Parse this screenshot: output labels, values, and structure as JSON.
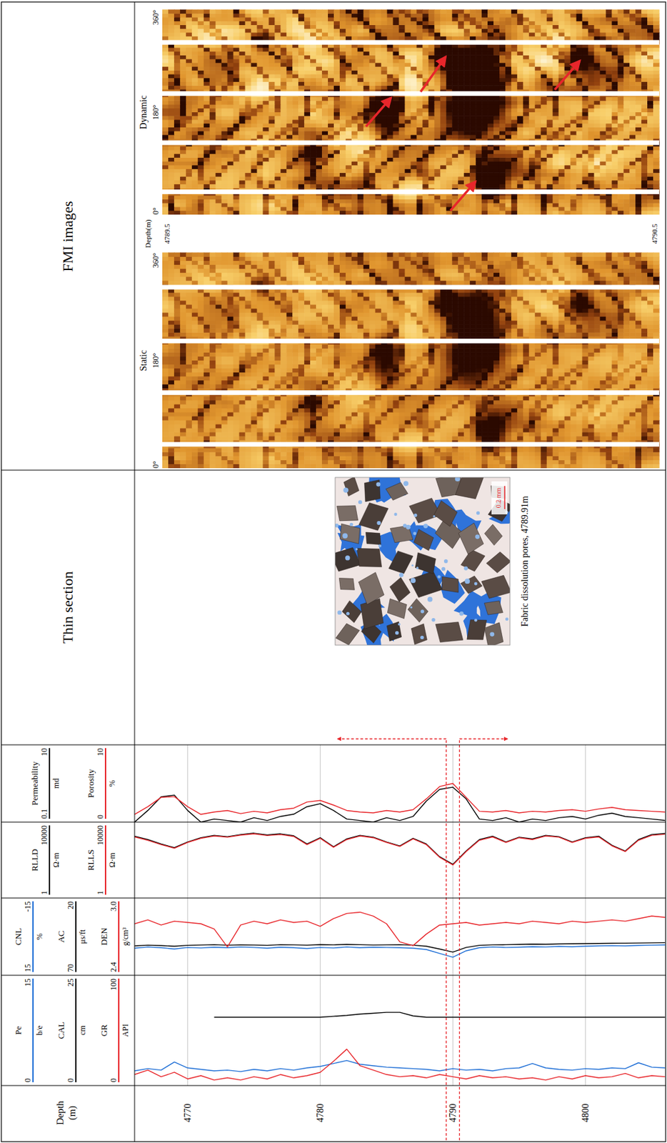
{
  "chart_data": {
    "type": "well_log",
    "depth": {
      "title": "Depth (m)",
      "ylim": [
        4766,
        4806
      ],
      "yticks": [
        4770,
        4780,
        4790,
        4800
      ],
      "grid": true,
      "values": [
        4766,
        4767,
        4768,
        4769,
        4770,
        4771,
        4772,
        4773,
        4774,
        4775,
        4776,
        4777,
        4778,
        4779,
        4780,
        4781,
        4782,
        4783,
        4784,
        4785,
        4786,
        4787,
        4788,
        4789,
        4790,
        4791,
        4792,
        4793,
        4794,
        4795,
        4796,
        4797,
        4798,
        4799,
        4800,
        4801,
        4802,
        4803,
        4804,
        4805,
        4806
      ]
    },
    "tracks": [
      {
        "series": [
          {
            "name": "Pe",
            "unit": "b/e",
            "color": "#1f6fd6",
            "xlim": [
              0,
              15
            ],
            "xticks": [
              0,
              15
            ],
            "values": [
              2.0,
              2.3,
              2.1,
              3.2,
              2.4,
              2.2,
              2.0,
              2.1,
              1.9,
              2.2,
              2.0,
              2.3,
              2.1,
              2.4,
              2.6,
              3.0,
              3.4,
              2.9,
              2.7,
              2.5,
              2.4,
              2.3,
              2.2,
              2.0,
              2.3,
              2.1,
              2.2,
              2.0,
              2.3,
              2.4,
              3.0,
              2.4,
              2.2,
              2.1,
              2.3,
              2.2,
              2.4,
              2.3,
              3.1,
              2.5,
              2.4
            ]
          },
          {
            "name": "CAL",
            "unit": "cm",
            "color": "#000000",
            "xlim": [
              0,
              25
            ],
            "xticks": [
              0,
              25
            ],
            "values": [
              null,
              null,
              null,
              null,
              null,
              null,
              15.5,
              15.5,
              15.5,
              15.5,
              15.5,
              15.5,
              15.5,
              15.5,
              15.5,
              15.7,
              15.9,
              16.2,
              16.4,
              16.6,
              16.6,
              15.8,
              15.5,
              15.5,
              15.5,
              15.5,
              15.5,
              15.5,
              15.5,
              15.5,
              15.5,
              15.5,
              15.5,
              15.5,
              15.5,
              15.5,
              15.5,
              15.5,
              15.5,
              15.5,
              15.5
            ]
          },
          {
            "name": "GR",
            "unit": "API",
            "color": "#e8262b",
            "xlim": [
              0,
              100
            ],
            "xticks": [
              0,
              100
            ],
            "values": [
              10,
              14,
              8,
              12,
              6,
              9,
              5,
              7,
              5,
              8,
              6,
              10,
              7,
              9,
              12,
              22,
              33,
              18,
              14,
              10,
              8,
              9,
              7,
              10,
              8,
              6,
              9,
              7,
              8,
              6,
              7,
              5,
              8,
              6,
              9,
              7,
              8,
              11,
              7,
              9,
              8
            ]
          }
        ]
      },
      {
        "series": [
          {
            "name": "CNL",
            "unit": "%",
            "color": "#1f6fd6",
            "xlim": [
              15,
              -15
            ],
            "xticks": [
              15,
              -15
            ],
            "values": [
              4.5,
              4.0,
              4.3,
              4.8,
              4.2,
              4.4,
              4.1,
              4.3,
              4.0,
              4.2,
              4.5,
              4.1,
              4.3,
              4.6,
              4.2,
              4.4,
              4.0,
              4.3,
              4.1,
              4.2,
              4.3,
              4.5,
              5.0,
              6.5,
              8.0,
              5.5,
              4.3,
              4.0,
              4.2,
              4.1,
              3.9,
              4.0,
              3.8,
              3.9,
              3.7,
              3.6,
              3.5,
              3.6,
              3.4,
              3.3,
              3.2
            ]
          },
          {
            "name": "AC",
            "unit": "μs/ft",
            "color": "#000000",
            "xlim": [
              70,
              20
            ],
            "xticks": [
              70,
              20
            ],
            "values": [
              51,
              50.5,
              50.8,
              51.2,
              50.6,
              50.4,
              50.2,
              50.5,
              50.3,
              50.4,
              50.6,
              50.2,
              50.3,
              50.5,
              50.1,
              50.3,
              50.0,
              50.2,
              50.4,
              50.3,
              50.2,
              50.5,
              51.2,
              53.0,
              55.0,
              52.0,
              50.6,
              50.3,
              50.2,
              50.0,
              49.8,
              49.9,
              49.7,
              49.6,
              49.5,
              49.4,
              49.3,
              49.2,
              49.1,
              49.0,
              48.9
            ]
          },
          {
            "name": "DEN",
            "unit": "g/cm³",
            "color": "#e8262b",
            "xlim": [
              2.4,
              3
            ],
            "xticks": [
              2.4,
              {
                "value": 3,
                "label": "3.0"
              }
            ],
            "values": [
              2.8,
              2.83,
              2.79,
              2.82,
              2.81,
              2.8,
              2.76,
              2.62,
              2.79,
              2.82,
              2.8,
              2.83,
              2.81,
              2.82,
              2.78,
              2.84,
              2.88,
              2.89,
              2.86,
              2.8,
              2.66,
              2.63,
              2.72,
              2.79,
              2.8,
              2.81,
              2.79,
              2.8,
              2.81,
              2.8,
              2.82,
              2.81,
              2.8,
              2.82,
              2.81,
              2.82,
              2.83,
              2.82,
              2.84,
              2.86,
              2.85
            ]
          }
        ]
      },
      {
        "series": [
          {
            "name": "RLLD",
            "unit": "Ω·m",
            "color": "#000000",
            "log": "x",
            "xlim": [
              1,
              10000
            ],
            "xticks": [
              1,
              10000
            ],
            "values": [
              1800,
              1200,
              700,
              450,
              900,
              1500,
              2000,
              1700,
              2200,
              2600,
              2100,
              2400,
              1900,
              700,
              1500,
              500,
              1300,
              2000,
              1600,
              900,
              550,
              1400,
              700,
              150,
              60,
              300,
              1200,
              1800,
              900,
              1600,
              1300,
              2000,
              1700,
              900,
              1500,
              1800,
              600,
              300,
              1200,
              2200,
              2500
            ]
          },
          {
            "name": "RLLS",
            "unit": "Ω·m",
            "color": "#e8262b",
            "log": "x",
            "xlim": [
              1,
              10000
            ],
            "xticks": [
              1,
              10000
            ],
            "values": [
              1650,
              1100,
              650,
              420,
              850,
              1400,
              1850,
              1600,
              2050,
              2400,
              1950,
              2200,
              1750,
              650,
              1400,
              470,
              1200,
              1850,
              1500,
              850,
              520,
              1300,
              650,
              140,
              55,
              280,
              1100,
              1650,
              850,
              1500,
              1200,
              1850,
              1600,
              850,
              1400,
              1650,
              560,
              280,
              1100,
              2000,
              2300
            ]
          }
        ]
      },
      {
        "series": [
          {
            "name": "Permeability",
            "unit": "md",
            "color": "#000000",
            "log": "x",
            "xlim": [
              0.1,
              10
            ],
            "xticks": [
              0.1,
              10
            ],
            "values": [
              0.1,
              0.2,
              0.45,
              0.5,
              0.2,
              0.1,
              0.12,
              0.11,
              0.1,
              0.13,
              0.11,
              0.14,
              0.16,
              0.25,
              0.3,
              0.2,
              0.12,
              0.11,
              0.1,
              0.13,
              0.11,
              0.14,
              0.35,
              0.7,
              0.8,
              0.4,
              0.12,
              0.11,
              0.13,
              0.1,
              0.12,
              0.11,
              0.13,
              0.14,
              0.12,
              0.15,
              0.17,
              0.14,
              0.13,
              0.12,
              0.11
            ]
          },
          {
            "name": "Porosity",
            "unit": "%",
            "color": "#e8262b",
            "xlim": [
              0,
              10
            ],
            "xticks": [
              0,
              10
            ],
            "values": [
              1.0,
              2.0,
              3.2,
              3.3,
              2.0,
              1.0,
              1.3,
              1.5,
              1.1,
              1.4,
              1.2,
              1.6,
              1.8,
              2.6,
              2.8,
              2.2,
              1.5,
              1.3,
              1.2,
              1.5,
              1.3,
              1.6,
              3.0,
              4.6,
              5.0,
              3.2,
              1.4,
              1.3,
              1.5,
              1.2,
              1.4,
              1.3,
              1.5,
              1.6,
              1.4,
              1.7,
              1.9,
              1.6,
              1.5,
              1.4,
              1.3
            ]
          }
        ]
      }
    ],
    "thin_section": {
      "title": "Thin section",
      "caption": "Fabric dissolution pores, 4789.91m",
      "scale_bar": "0.2 mm"
    },
    "fmi": {
      "title": "FMI images",
      "depth_title": "Depth(m)",
      "ylim": [
        4789.5,
        4790.5
      ],
      "yticks": [
        4789.5,
        4790.5
      ],
      "xlim": [
        0,
        360
      ],
      "xticks": [
        {
          "value": 0,
          "label": "0°"
        },
        {
          "value": 180,
          "label": "180°"
        },
        {
          "value": 360,
          "label": "360°"
        }
      ],
      "panels": [
        {
          "name": "Static"
        },
        {
          "name": "Dynamic"
        }
      ]
    }
  }
}
